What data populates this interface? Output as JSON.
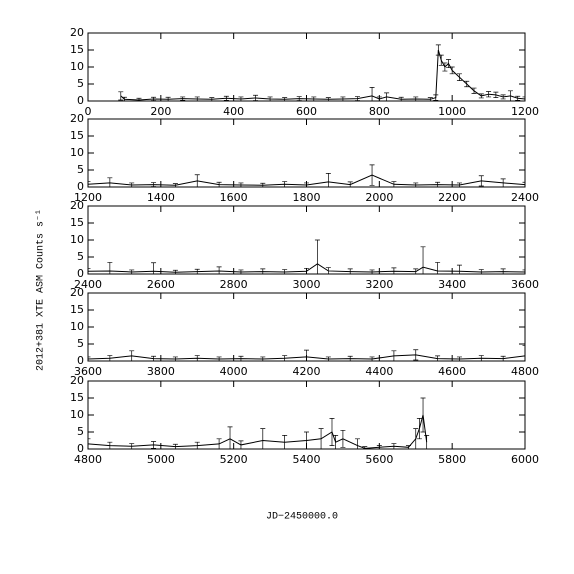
{
  "ylabel": "2012+381 XTE ASM Counts s⁻¹",
  "xlabel": "JD−2450000.0",
  "chart_data": [
    {
      "type": "line",
      "xlim": [
        0,
        1200
      ],
      "xticks": [
        0,
        200,
        400,
        600,
        800,
        1000,
        1200
      ],
      "ylim": [
        0,
        20
      ],
      "yticks": [
        0,
        5,
        10,
        15,
        20
      ],
      "x": [
        90,
        100,
        140,
        180,
        220,
        260,
        300,
        340,
        380,
        420,
        460,
        500,
        540,
        580,
        620,
        660,
        700,
        740,
        780,
        800,
        820,
        860,
        900,
        940,
        955,
        962,
        970,
        980,
        990,
        1000,
        1020,
        1040,
        1060,
        1080,
        1100,
        1120,
        1140,
        1160,
        1180,
        1200
      ],
      "series": [
        {
          "color": "#000000",
          "values": [
            1.5,
            0.5,
            0.3,
            0.6,
            0.5,
            0.7,
            0.6,
            0.5,
            0.8,
            0.6,
            0.9,
            0.6,
            0.5,
            0.7,
            0.6,
            0.5,
            0.6,
            0.7,
            1.5,
            0.6,
            1.2,
            0.5,
            0.6,
            0.5,
            1.0,
            15,
            12,
            10,
            11,
            9,
            7,
            5,
            3,
            1.5,
            2,
            1.8,
            1.2,
            1.5,
            0.8,
            0.6
          ],
          "errors": [
            1.2,
            0.6,
            0.5,
            0.5,
            0.6,
            0.5,
            0.6,
            0.5,
            0.6,
            0.6,
            0.8,
            0.6,
            0.5,
            0.6,
            0.6,
            0.5,
            0.6,
            0.6,
            2.5,
            0.6,
            1.2,
            0.6,
            0.6,
            0.5,
            0.8,
            1.5,
            1.5,
            1.2,
            1.2,
            1.0,
            1.0,
            0.8,
            0.8,
            0.6,
            0.8,
            0.8,
            0.6,
            1.5,
            0.6,
            0.6
          ]
        }
      ]
    },
    {
      "type": "line",
      "xlim": [
        1200,
        2400
      ],
      "xticks": [
        1200,
        1400,
        1600,
        1800,
        2000,
        2200,
        2400
      ],
      "ylim": [
        0,
        20
      ],
      "yticks": [
        0,
        5,
        10,
        15,
        20
      ],
      "x": [
        1200,
        1260,
        1320,
        1380,
        1440,
        1500,
        1560,
        1620,
        1680,
        1740,
        1800,
        1860,
        1920,
        1980,
        2040,
        2100,
        2160,
        2220,
        2280,
        2340,
        2400
      ],
      "series": [
        {
          "color": "#000000",
          "values": [
            0.8,
            1.2,
            0.6,
            0.7,
            0.5,
            1.8,
            0.7,
            0.6,
            0.5,
            0.8,
            0.6,
            1.5,
            0.7,
            3.5,
            0.8,
            0.6,
            0.7,
            0.6,
            1.8,
            1.2,
            0.7
          ],
          "errors": [
            0.8,
            1.5,
            0.6,
            0.6,
            0.5,
            1.8,
            0.7,
            0.6,
            0.6,
            0.8,
            0.6,
            2.5,
            0.8,
            3,
            0.8,
            0.6,
            0.7,
            0.6,
            1.5,
            1.2,
            0.7
          ]
        }
      ]
    },
    {
      "type": "line",
      "xlim": [
        2400,
        3600
      ],
      "xticks": [
        2400,
        2600,
        2800,
        3000,
        3200,
        3400,
        3600
      ],
      "ylim": [
        0,
        20
      ],
      "yticks": [
        0,
        5,
        10,
        15,
        20
      ],
      "x": [
        2400,
        2460,
        2520,
        2580,
        2640,
        2700,
        2760,
        2820,
        2880,
        2940,
        3000,
        3030,
        3060,
        3120,
        3180,
        3240,
        3300,
        3320,
        3360,
        3420,
        3480,
        3540,
        3600
      ],
      "series": [
        {
          "color": "#000000",
          "values": [
            0.8,
            0.9,
            0.6,
            0.8,
            0.5,
            0.7,
            0.9,
            0.6,
            0.7,
            0.6,
            0.8,
            3,
            0.9,
            0.7,
            0.6,
            0.8,
            0.7,
            2,
            0.9,
            0.8,
            0.6,
            0.7,
            0.6
          ],
          "errors": [
            0.8,
            2.5,
            0.6,
            2.5,
            0.6,
            0.7,
            1.2,
            0.6,
            0.8,
            0.7,
            0.8,
            7,
            1,
            0.8,
            0.6,
            1,
            0.8,
            6,
            2.5,
            1.8,
            0.7,
            0.8,
            0.6
          ]
        }
      ]
    },
    {
      "type": "line",
      "xlim": [
        3600,
        4800
      ],
      "xticks": [
        3600,
        3800,
        4000,
        4200,
        4400,
        4600,
        4800
      ],
      "ylim": [
        0,
        20
      ],
      "yticks": [
        0,
        5,
        10,
        15,
        20
      ],
      "x": [
        3600,
        3660,
        3720,
        3780,
        3840,
        3900,
        3960,
        4020,
        4080,
        4140,
        4200,
        4260,
        4320,
        4380,
        4440,
        4500,
        4560,
        4620,
        4680,
        4740,
        4800
      ],
      "series": [
        {
          "color": "#000000",
          "values": [
            0.6,
            0.8,
            1.5,
            0.7,
            0.6,
            0.8,
            0.6,
            0.7,
            0.6,
            0.8,
            1.2,
            0.6,
            0.7,
            0.6,
            1.5,
            1.8,
            0.7,
            0.6,
            0.8,
            0.7,
            1.5
          ],
          "errors": [
            0.6,
            0.8,
            1.5,
            0.7,
            0.6,
            0.8,
            0.6,
            0.7,
            0.6,
            0.8,
            2,
            0.6,
            0.7,
            0.6,
            1.5,
            1.5,
            0.8,
            0.6,
            0.8,
            0.7,
            3
          ]
        }
      ]
    },
    {
      "type": "line",
      "xlim": [
        4800,
        6000
      ],
      "xticks": [
        4800,
        5000,
        5200,
        5400,
        5600,
        5800,
        6000
      ],
      "ylim": [
        0,
        20
      ],
      "yticks": [
        0,
        5,
        10,
        15,
        20
      ],
      "x": [
        4800,
        4860,
        4920,
        4980,
        5040,
        5100,
        5160,
        5190,
        5220,
        5280,
        5340,
        5400,
        5440,
        5470,
        5480,
        5500,
        5540,
        5560,
        5600,
        5640,
        5680,
        5700,
        5710,
        5720,
        5730
      ],
      "series": [
        {
          "color": "#000000",
          "values": [
            1.5,
            1,
            0.8,
            1.2,
            0.7,
            1,
            1.5,
            3,
            1.2,
            2.5,
            2,
            2.5,
            3,
            5,
            2,
            3,
            1,
            0.2,
            0.5,
            0.8,
            0.5,
            3,
            6,
            10,
            2
          ],
          "errors": [
            1.5,
            1,
            0.8,
            1,
            0.7,
            1,
            1.5,
            3.5,
            1.2,
            3.5,
            2,
            2.5,
            3,
            4,
            2,
            2.5,
            2,
            0.5,
            0.5,
            0.8,
            0.5,
            3,
            3,
            5,
            2
          ]
        }
      ]
    }
  ]
}
